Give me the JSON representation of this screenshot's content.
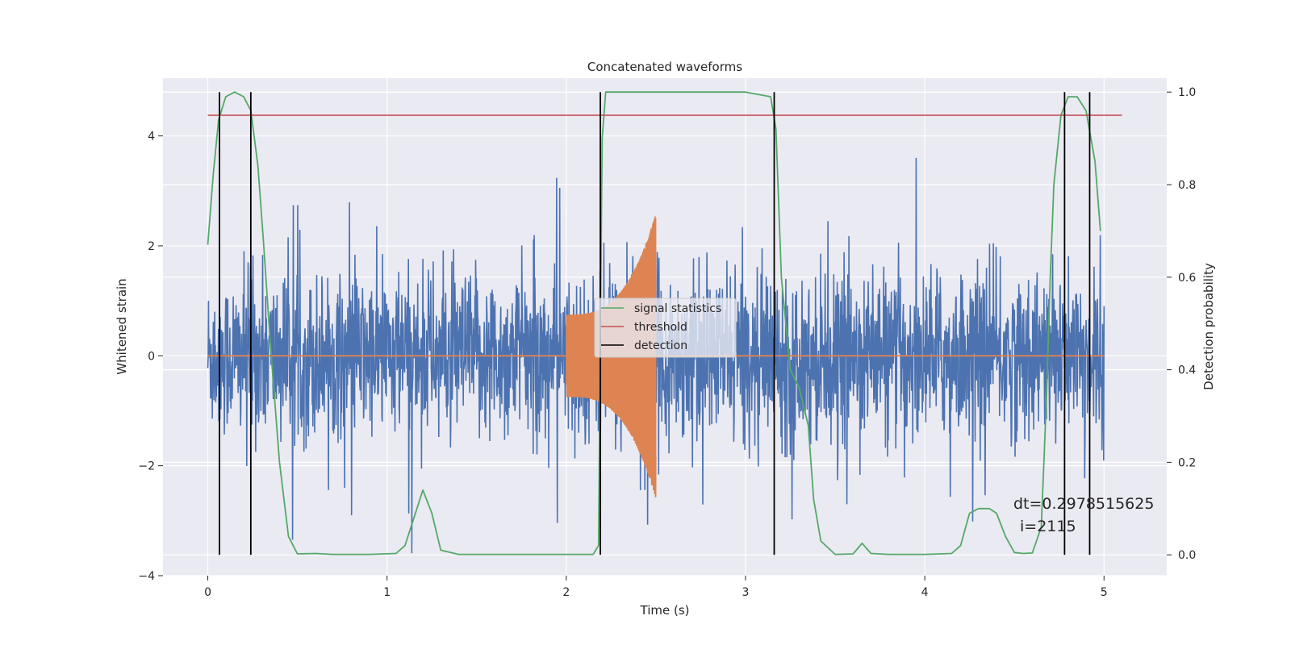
{
  "chart_data": {
    "type": "line",
    "title": "Concatenated waveforms",
    "xlabel": "Time (s)",
    "ylabel": "Whitened strain",
    "ylabel_right": "Detection probability",
    "xlim": [
      -0.25,
      5.35
    ],
    "ylim": [
      -4.0,
      5.05
    ],
    "ylim_right": [
      -0.045,
      1.03
    ],
    "x_ticks": [
      0,
      1,
      2,
      3,
      4,
      5
    ],
    "x_tick_labels": [
      "0",
      "1",
      "2",
      "3",
      "4",
      "5"
    ],
    "y_ticks": [
      -4,
      -2,
      0,
      2,
      4
    ],
    "y_tick_labels": [
      "−4",
      "−2",
      "0",
      "2",
      "4"
    ],
    "y_right_ticks": [
      0.0,
      0.2,
      0.4,
      0.6,
      0.8,
      1.0
    ],
    "y_right_tick_labels": [
      "0.0",
      "0.2",
      "0.4",
      "0.6",
      "0.8",
      "1.0"
    ],
    "grid": true,
    "legend_position": "center",
    "legend": [
      {
        "label": "signal statistics",
        "color": "#55a868"
      },
      {
        "label": "threshold",
        "color": "#c44e52"
      },
      {
        "label": "detection",
        "color": "#000000"
      }
    ],
    "colors": {
      "strain": "#4c72b0",
      "injected_signal": "#dd8452",
      "signal_statistics": "#55a868",
      "threshold": "#c44e52",
      "detection": "#000000",
      "plot_background": "#eaeaf2",
      "grid": "#ffffff"
    },
    "threshold": {
      "value": 0.95,
      "x_range": [
        0,
        5.1
      ]
    },
    "detections_s": [
      0.065,
      0.24,
      2.19,
      3.16,
      4.78,
      4.92
    ],
    "strain_noise": {
      "x_range": [
        0,
        5.0
      ],
      "typical_amplitude": 1.2,
      "max_abs": 3.6
    },
    "injected_signals": [
      {
        "x_start": 2.0,
        "x_end": 2.5,
        "start_amplitude": 0.75,
        "peak_amplitude": 2.6
      }
    ],
    "signal_statistics": {
      "x": [
        0,
        0.03,
        0.06,
        0.1,
        0.15,
        0.2,
        0.24,
        0.28,
        0.31,
        0.35,
        0.4,
        0.45,
        0.5,
        0.6,
        0.7,
        0.9,
        1.05,
        1.1,
        1.15,
        1.2,
        1.25,
        1.3,
        1.4,
        1.6,
        2.0,
        2.15,
        2.18,
        2.2,
        2.22,
        2.3,
        2.6,
        3.0,
        3.14,
        3.17,
        3.2,
        3.25,
        3.3,
        3.35,
        3.38,
        3.42,
        3.5,
        3.6,
        3.65,
        3.7,
        3.8,
        4.0,
        4.15,
        4.2,
        4.25,
        4.3,
        4.36,
        4.4,
        4.45,
        4.5,
        4.55,
        4.6,
        4.65,
        4.68,
        4.7,
        4.72,
        4.76,
        4.8,
        4.85,
        4.9,
        4.95,
        4.98
      ],
      "y": [
        0.67,
        0.82,
        0.94,
        0.99,
        1.0,
        0.99,
        0.96,
        0.84,
        0.68,
        0.45,
        0.2,
        0.04,
        0.002,
        0.003,
        0.001,
        0.001,
        0.003,
        0.02,
        0.08,
        0.14,
        0.09,
        0.01,
        0.001,
        0.001,
        0.001,
        0.001,
        0.02,
        0.9,
        1.0,
        1.0,
        1.0,
        1.0,
        0.99,
        0.92,
        0.6,
        0.4,
        0.36,
        0.28,
        0.12,
        0.03,
        0.001,
        0.002,
        0.025,
        0.003,
        0.001,
        0.001,
        0.003,
        0.02,
        0.09,
        0.1,
        0.1,
        0.09,
        0.04,
        0.005,
        0.003,
        0.004,
        0.06,
        0.35,
        0.6,
        0.8,
        0.95,
        0.99,
        0.99,
        0.96,
        0.85,
        0.7
      ]
    },
    "annotation": [
      "dt=0.2978515625",
      "i=2115"
    ]
  }
}
